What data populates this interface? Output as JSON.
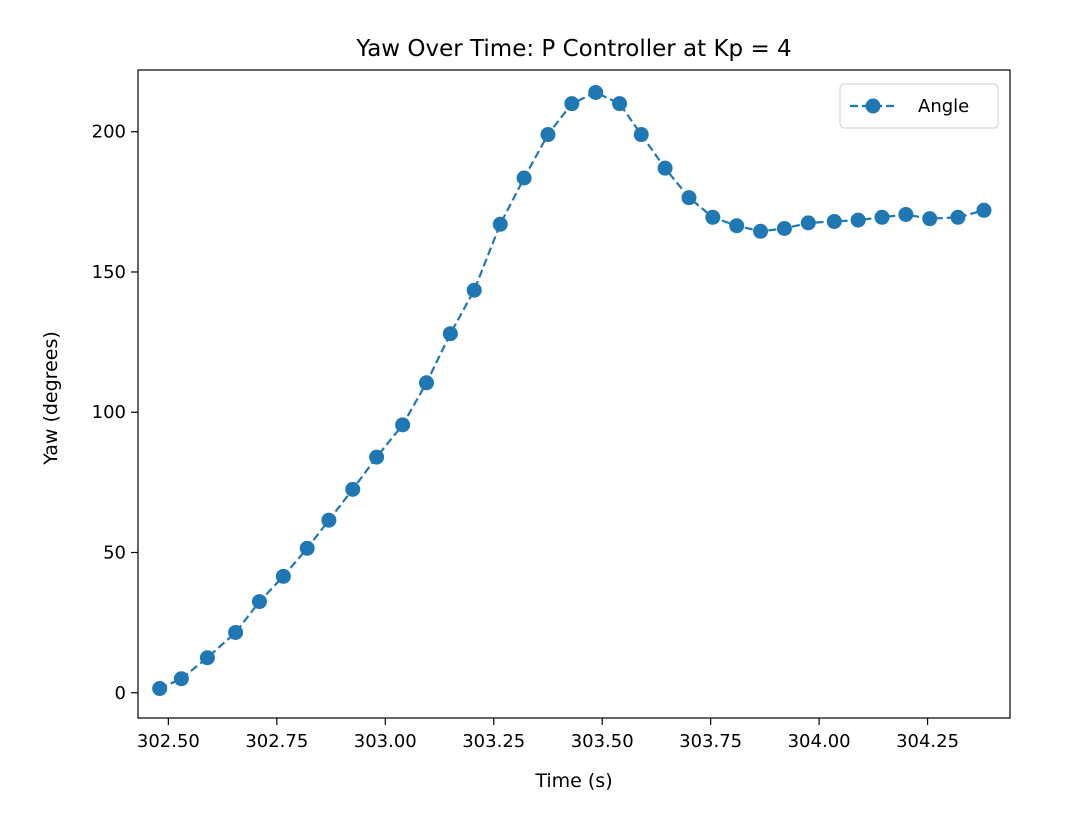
{
  "chart_data": {
    "type": "line",
    "title": "Yaw Over Time: P Controller at Kp = 4",
    "xlabel": "Time (s)",
    "ylabel": "Yaw (degrees)",
    "xlim": [
      302.43,
      304.44
    ],
    "ylim": [
      -9,
      222
    ],
    "xticks": [
      302.5,
      302.75,
      303.0,
      303.25,
      303.5,
      303.75,
      304.0,
      304.25
    ],
    "xtick_labels": [
      "302.50",
      "302.75",
      "303.00",
      "303.25",
      "303.50",
      "303.75",
      "304.00",
      "304.25"
    ],
    "yticks": [
      0,
      50,
      100,
      150,
      200
    ],
    "ytick_labels": [
      "0",
      "50",
      "100",
      "150",
      "200"
    ],
    "grid": false,
    "legend_position": "upper-right",
    "series": [
      {
        "name": "Angle",
        "color": "#1f77b4",
        "line_style": "dashed",
        "marker": "circle",
        "x": [
          302.48,
          302.53,
          302.59,
          302.655,
          302.71,
          302.765,
          302.82,
          302.87,
          302.925,
          302.98,
          303.04,
          303.095,
          303.15,
          303.205,
          303.265,
          303.32,
          303.375,
          303.43,
          303.485,
          303.54,
          303.59,
          303.645,
          303.7,
          303.755,
          303.81,
          303.865,
          303.92,
          303.975,
          304.035,
          304.09,
          304.145,
          304.2,
          304.255,
          304.32,
          304.38
        ],
        "y": [
          1.5,
          5,
          12.5,
          21.5,
          32.5,
          41.5,
          51.5,
          61.5,
          72.5,
          84,
          95.5,
          110.5,
          128,
          143.5,
          167,
          183.5,
          199,
          210,
          214,
          210,
          199,
          187,
          176.5,
          169.5,
          166.5,
          164.5,
          165.5,
          167.5,
          168,
          168.5,
          169.5,
          170.5,
          169,
          169.5,
          172
        ]
      }
    ]
  }
}
